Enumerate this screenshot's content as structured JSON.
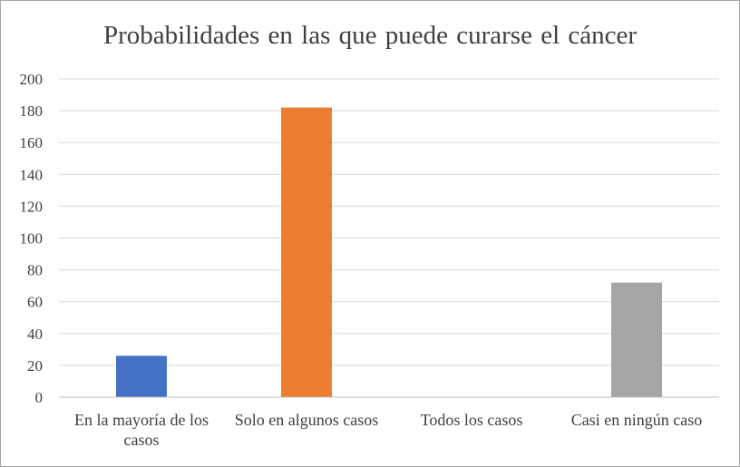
{
  "chart_data": {
    "type": "bar",
    "title": "Probabilidades  en las que puede curarse  el cáncer",
    "categories": [
      [
        "En la mayoría de los",
        "casos"
      ],
      [
        "Solo en algunos casos"
      ],
      [
        "Todos los casos"
      ],
      [
        "Casi en ningún caso"
      ]
    ],
    "series": [
      {
        "values": [
          26,
          182,
          0,
          72
        ],
        "colors": [
          "#4472c4",
          "#ed7d31",
          "#a5a5a5",
          "#a5a5a5"
        ]
      }
    ],
    "ylim": [
      0,
      200
    ],
    "yticks": [
      "0",
      "20",
      "40",
      "60",
      "80",
      "100",
      "120",
      "140",
      "160",
      "180",
      "200"
    ],
    "grid": true,
    "legend": "none",
    "xlabel": "",
    "ylabel": ""
  }
}
